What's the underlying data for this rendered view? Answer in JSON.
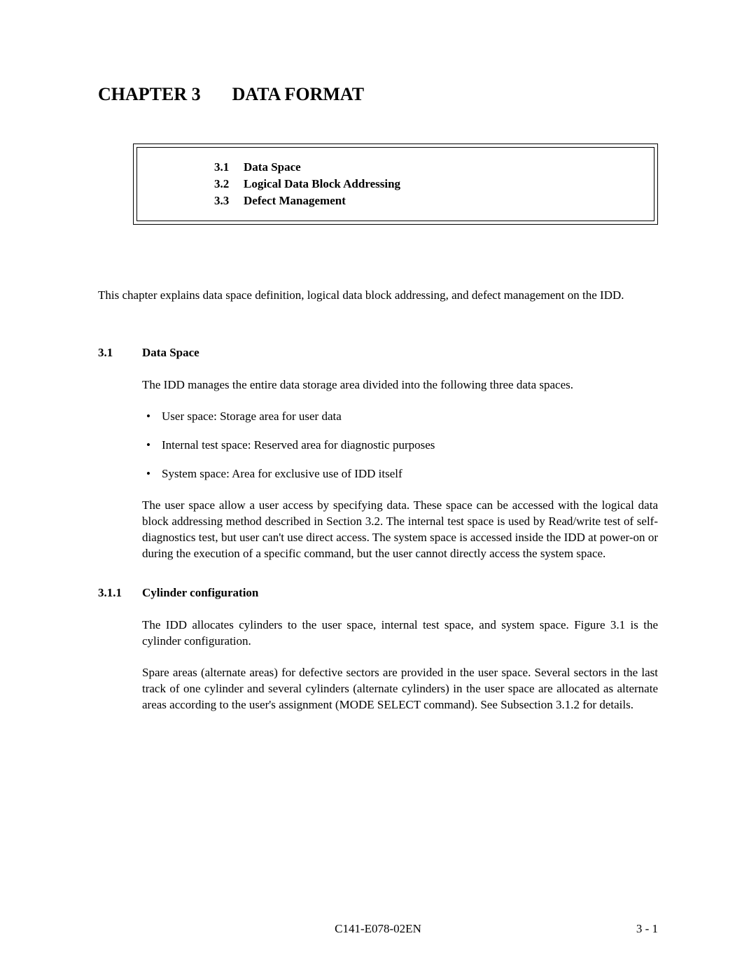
{
  "chapter": {
    "label": "CHAPTER 3",
    "title": "DATA FORMAT"
  },
  "toc": [
    {
      "num": "3.1",
      "title": "Data Space"
    },
    {
      "num": "3.2",
      "title": "Logical Data Block Addressing"
    },
    {
      "num": "3.3",
      "title": "Defect Management"
    }
  ],
  "intro": "This chapter explains data space definition, logical data block addressing, and defect management on the IDD.",
  "section_3_1": {
    "num": "3.1",
    "title": "Data Space",
    "para1": "The IDD manages the entire data storage area divided into the following three data spaces.",
    "bullets": [
      "User space: Storage area for user data",
      "Internal test space: Reserved area for diagnostic purposes",
      "System space: Area for exclusive use of IDD itself"
    ],
    "para2": "The user space allow a user access by specifying data.  These space can be accessed with the logical data block addressing method described in Section 3.2.  The internal test space is used by Read/write test of self-diagnostics test, but user can't use direct access.  The system space is accessed inside the IDD at power-on or during the execution of a specific command, but the user cannot directly access the system space."
  },
  "section_3_1_1": {
    "num": "3.1.1",
    "title": "Cylinder configuration",
    "para1": "The IDD allocates cylinders to the user space, internal test space, and system space.  Figure 3.1 is the cylinder configuration.",
    "para2": "Spare areas (alternate areas) for defective sectors are provided in the user space.  Several sectors in the last track of one cylinder and several cylinders (alternate cylinders) in the user space are allocated as alternate areas according to the user's assignment (MODE SELECT command).  See Subsection 3.1.2 for details."
  },
  "footer": {
    "center": "C141-E078-02EN",
    "right": "3 - 1"
  }
}
